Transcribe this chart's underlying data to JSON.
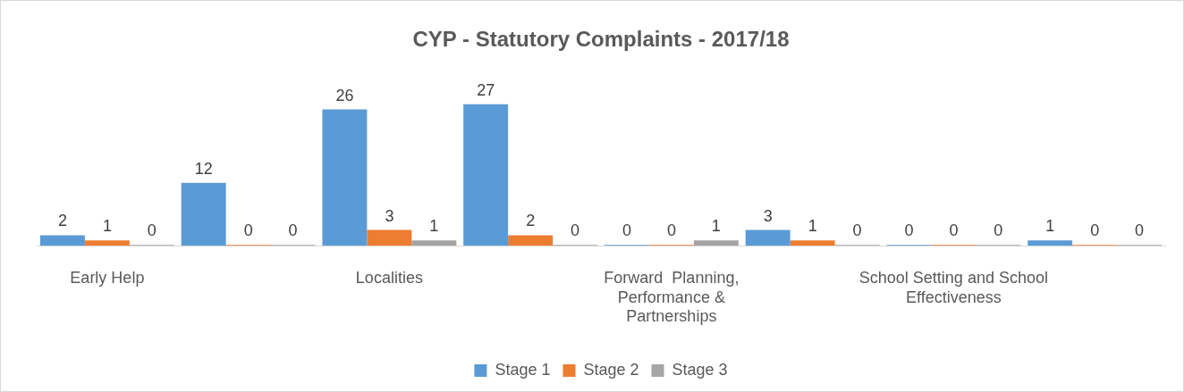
{
  "chart_data": {
    "type": "bar",
    "title": "CYP - Statutory Complaints - 2017/18",
    "categories": [
      "Early Help",
      null,
      "Localities",
      null,
      "Forward  Planning, Performance & Partnerships",
      null,
      "School Setting and School Effectiveness",
      null
    ],
    "series": [
      {
        "name": "Stage 1",
        "color": "#5b9bd5",
        "values": [
          2,
          12,
          26,
          27,
          0,
          3,
          0,
          1
        ]
      },
      {
        "name": "Stage 2",
        "color": "#ed7d31",
        "values": [
          1,
          0,
          3,
          2,
          0,
          1,
          0,
          0
        ]
      },
      {
        "name": "Stage 3",
        "color": "#a5a5a5",
        "values": [
          0,
          0,
          1,
          0,
          1,
          0,
          0,
          0
        ]
      }
    ],
    "data_labels": true,
    "grid": false,
    "legend": "bottom"
  }
}
